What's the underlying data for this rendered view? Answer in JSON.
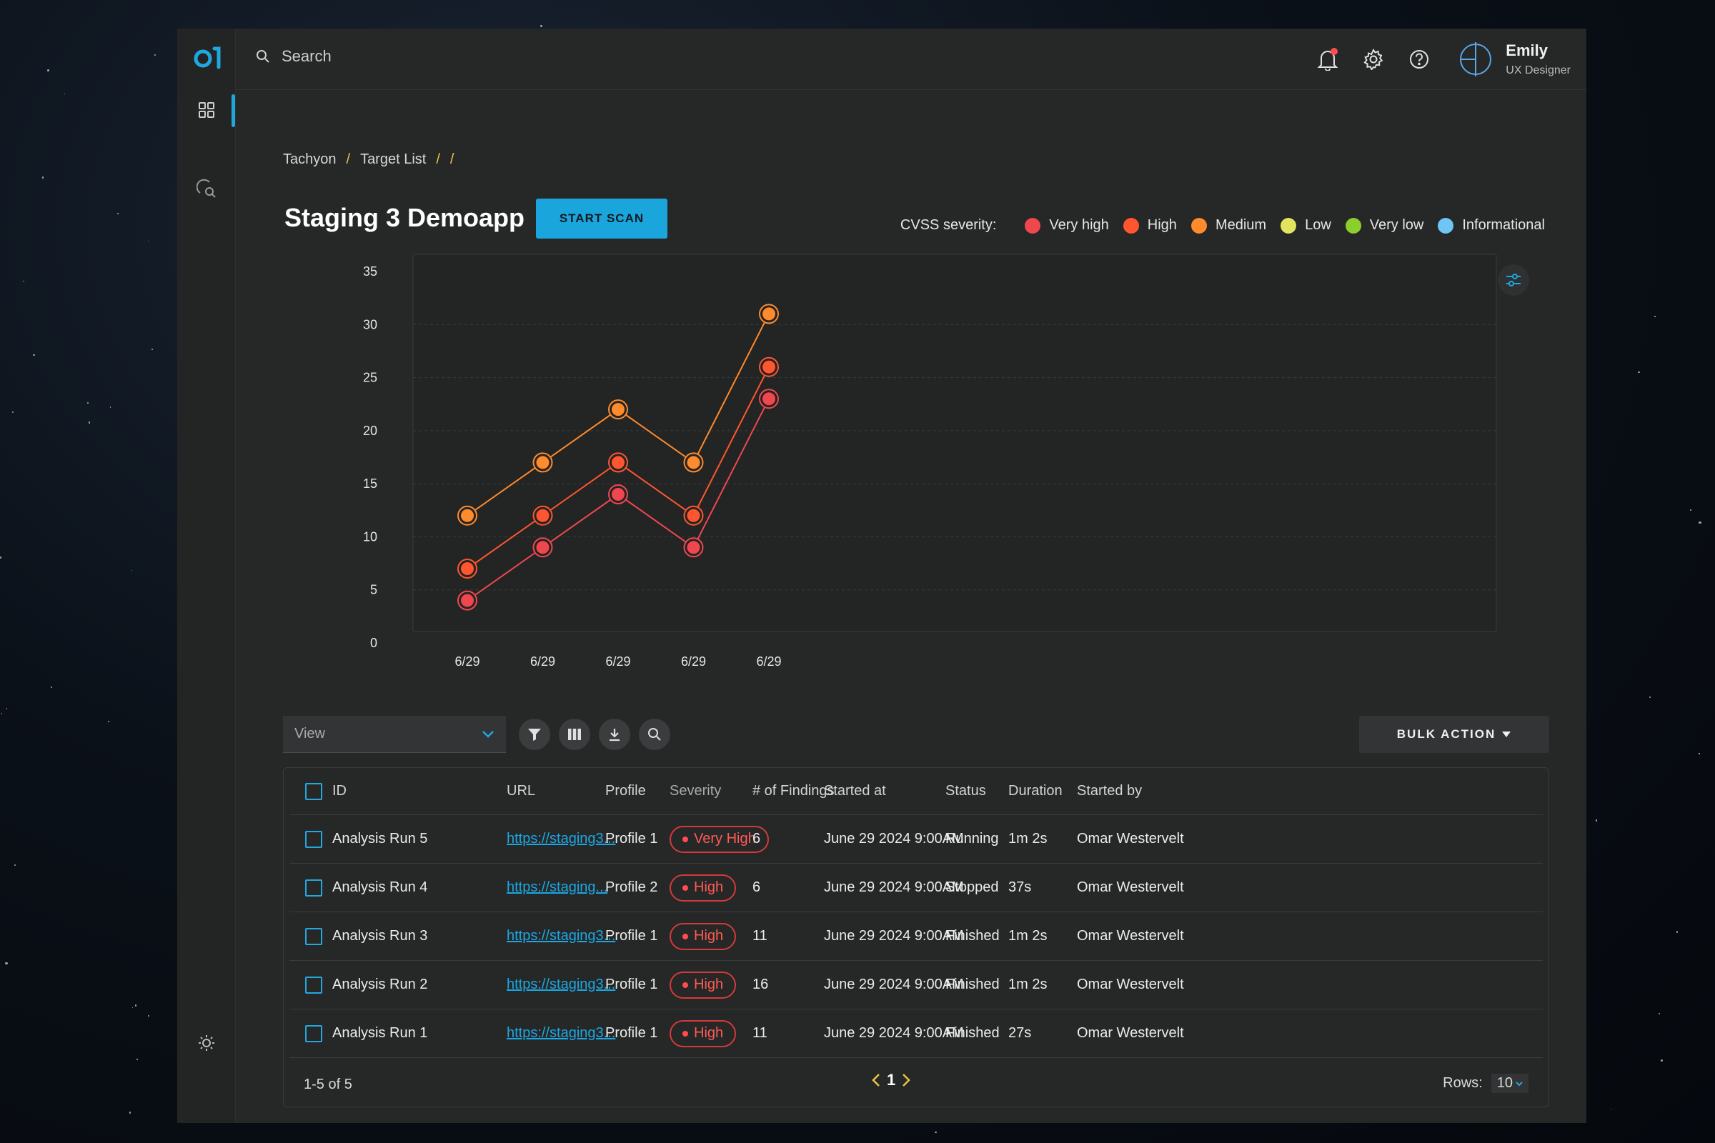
{
  "app": {
    "search_placeholder": "Search",
    "user": {
      "name": "Emily",
      "role": "UX Designer"
    }
  },
  "breadcrumb": {
    "items": [
      "Tachyon",
      "Target List"
    ],
    "separator": "/"
  },
  "page": {
    "title": "Staging 3 Demoapp",
    "start_scan_label": "START SCAN"
  },
  "legend": {
    "label": "CVSS severity:",
    "items": [
      {
        "name": "Very high",
        "color": "#f0474f"
      },
      {
        "name": "High",
        "color": "#ff5630"
      },
      {
        "name": "Medium",
        "color": "#ff8b2c"
      },
      {
        "name": "Low",
        "color": "#e2e35f"
      },
      {
        "name": "Very low",
        "color": "#8ccf2c"
      },
      {
        "name": "Informational",
        "color": "#6fc6f5"
      }
    ]
  },
  "chart_data": {
    "type": "line",
    "x": [
      "6/29",
      "6/29",
      "6/29",
      "6/29",
      "6/29"
    ],
    "yticks": [
      0,
      5,
      10,
      15,
      20,
      25,
      30,
      35
    ],
    "ylim": [
      0,
      35
    ],
    "grid": true,
    "series": [
      {
        "name": "Medium",
        "color": "#ff8b2c",
        "values": [
          12,
          17,
          22,
          17,
          31
        ]
      },
      {
        "name": "High",
        "color": "#ff5630",
        "values": [
          7,
          12,
          17,
          12,
          26
        ]
      },
      {
        "name": "Very high",
        "color": "#f0474f",
        "values": [
          4,
          9,
          14,
          9,
          23
        ]
      }
    ]
  },
  "toolbar": {
    "view_label": "View",
    "bulk_action_label": "BULK ACTION"
  },
  "table": {
    "columns": [
      "ID",
      "URL",
      "Profile",
      "Severity",
      "# of Findings",
      "Started at",
      "Status",
      "Duration",
      "Started by"
    ],
    "rows": [
      {
        "id": "Analysis Run 5",
        "url": "https://staging3...",
        "profile": "Profile 1",
        "severity": "Very High",
        "findings": "6",
        "started_at": "June 29 2024 9:00AM",
        "status": "Running",
        "duration": "1m 2s",
        "started_by": "Omar Westervelt"
      },
      {
        "id": "Analysis Run 4",
        "url": "https://staging...",
        "profile": "Profile 2",
        "severity": "High",
        "findings": "6",
        "started_at": "June 29 2024 9:00AM",
        "status": "Stopped",
        "duration": "37s",
        "started_by": "Omar Westervelt"
      },
      {
        "id": "Analysis Run 3",
        "url": "https://staging3...",
        "profile": "Profile 1",
        "severity": "High",
        "findings": "11",
        "started_at": "June 29 2024 9:00AM",
        "status": "Finished",
        "duration": "1m 2s",
        "started_by": "Omar Westervelt"
      },
      {
        "id": "Analysis Run 2",
        "url": "https://staging3...",
        "profile": "Profile 1",
        "severity": "High",
        "findings": "16",
        "started_at": "June 29 2024 9:00AM",
        "status": "Finished",
        "duration": "1m 2s",
        "started_by": "Omar Westervelt"
      },
      {
        "id": "Analysis Run 1",
        "url": "https://staging3...",
        "profile": "Profile 1",
        "severity": "High",
        "findings": "11",
        "started_at": "June 29 2024 9:00AM",
        "status": "Finished",
        "duration": "27s",
        "started_by": "Omar Westervelt"
      }
    ],
    "footer": {
      "range_text": "1-5 of 5",
      "page": "1",
      "rows_label": "Rows:",
      "rows_value": "10"
    }
  }
}
